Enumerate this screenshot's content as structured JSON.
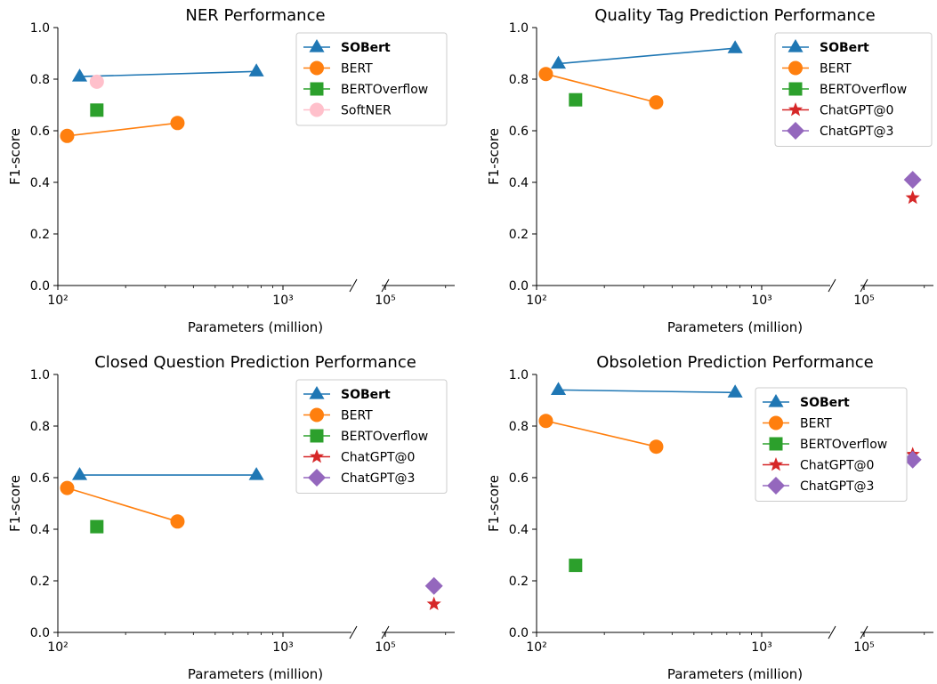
{
  "figure": {
    "panels": [
      {
        "title": "NER Performance",
        "xlabel": "Parameters (million)",
        "ylabel": "F1-score"
      },
      {
        "title": "Quality Tag Prediction Performance",
        "xlabel": "Parameters (million)",
        "ylabel": "F1-score"
      },
      {
        "title": "Closed Question Prediction Performance",
        "xlabel": "Parameters (million)",
        "ylabel": "F1-score"
      },
      {
        "title": "Obsoletion Prediction Performance",
        "xlabel": "Parameters (million)",
        "ylabel": "F1-score"
      }
    ]
  },
  "chart_data": [
    {
      "type": "line",
      "title": "NER Performance",
      "xlabel": "Parameters (million)",
      "ylabel": "F1-score",
      "xscale": "log (broken axis)",
      "ylim": [
        0,
        1
      ],
      "yticks": [
        "0.0",
        "0.2",
        "0.4",
        "0.6",
        "0.8",
        "1.0"
      ],
      "xticks": [
        "10²",
        "10³",
        "10⁵"
      ],
      "legend_position": "top-right",
      "series": [
        {
          "name": "SOBert",
          "bold": true,
          "color": "#1f77b4",
          "marker": "triangle",
          "connected": true,
          "points": [
            {
              "x": 125,
              "y": 0.81
            },
            {
              "x": 762,
              "y": 0.83
            }
          ]
        },
        {
          "name": "BERT",
          "color": "#ff7f0e",
          "marker": "circle",
          "connected": true,
          "points": [
            {
              "x": 110,
              "y": 0.58
            },
            {
              "x": 340,
              "y": 0.63
            }
          ]
        },
        {
          "name": "BERTOverflow",
          "color": "#2ca02c",
          "marker": "square",
          "connected": false,
          "points": [
            {
              "x": 149,
              "y": 0.68
            }
          ]
        },
        {
          "name": "SoftNER",
          "color": "#ffc0cb",
          "marker": "circle",
          "connected": false,
          "points": [
            {
              "x": 149,
              "y": 0.79
            }
          ]
        }
      ]
    },
    {
      "type": "line",
      "title": "Quality Tag Prediction Performance",
      "xlabel": "Parameters (million)",
      "ylabel": "F1-score",
      "xscale": "log (broken axis)",
      "ylim": [
        0,
        1
      ],
      "yticks": [
        "0.0",
        "0.2",
        "0.4",
        "0.6",
        "0.8",
        "1.0"
      ],
      "xticks": [
        "10²",
        "10³",
        "10⁵"
      ],
      "legend_position": "top-right",
      "series": [
        {
          "name": "SOBert",
          "bold": true,
          "color": "#1f77b4",
          "marker": "triangle",
          "connected": true,
          "points": [
            {
              "x": 125,
              "y": 0.86
            },
            {
              "x": 762,
              "y": 0.92
            }
          ]
        },
        {
          "name": "BERT",
          "color": "#ff7f0e",
          "marker": "circle",
          "connected": true,
          "points": [
            {
              "x": 110,
              "y": 0.82
            },
            {
              "x": 340,
              "y": 0.71
            }
          ]
        },
        {
          "name": "BERTOverflow",
          "color": "#2ca02c",
          "marker": "square",
          "connected": false,
          "points": [
            {
              "x": 149,
              "y": 0.72
            }
          ]
        },
        {
          "name": "ChatGPT@0",
          "color": "#d62728",
          "marker": "star",
          "connected": false,
          "points": [
            {
              "x": 175000,
              "y": 0.34
            }
          ]
        },
        {
          "name": "ChatGPT@3",
          "color": "#9467bd",
          "marker": "diamond",
          "connected": false,
          "points": [
            {
              "x": 175000,
              "y": 0.41
            }
          ]
        }
      ]
    },
    {
      "type": "line",
      "title": "Closed Question Prediction Performance",
      "xlabel": "Parameters (million)",
      "ylabel": "F1-score",
      "xscale": "log (broken axis)",
      "ylim": [
        0,
        1
      ],
      "yticks": [
        "0.0",
        "0.2",
        "0.4",
        "0.6",
        "0.8",
        "1.0"
      ],
      "xticks": [
        "10²",
        "10³",
        "10⁵"
      ],
      "legend_position": "top-right",
      "series": [
        {
          "name": "SOBert",
          "bold": true,
          "color": "#1f77b4",
          "marker": "triangle",
          "connected": true,
          "points": [
            {
              "x": 125,
              "y": 0.61
            },
            {
              "x": 762,
              "y": 0.61
            }
          ]
        },
        {
          "name": "BERT",
          "color": "#ff7f0e",
          "marker": "circle",
          "connected": true,
          "points": [
            {
              "x": 110,
              "y": 0.56
            },
            {
              "x": 340,
              "y": 0.43
            }
          ]
        },
        {
          "name": "BERTOverflow",
          "color": "#2ca02c",
          "marker": "square",
          "connected": false,
          "points": [
            {
              "x": 149,
              "y": 0.41
            }
          ]
        },
        {
          "name": "ChatGPT@0",
          "color": "#d62728",
          "marker": "star",
          "connected": false,
          "points": [
            {
              "x": 175000,
              "y": 0.11
            }
          ]
        },
        {
          "name": "ChatGPT@3",
          "color": "#9467bd",
          "marker": "diamond",
          "connected": false,
          "points": [
            {
              "x": 175000,
              "y": 0.18
            }
          ]
        }
      ]
    },
    {
      "type": "line",
      "title": "Obsoletion Prediction Performance",
      "xlabel": "Parameters (million)",
      "ylabel": "F1-score",
      "xscale": "log (broken axis)",
      "ylim": [
        0,
        1
      ],
      "yticks": [
        "0.0",
        "0.2",
        "0.4",
        "0.6",
        "0.8",
        "1.0"
      ],
      "xticks": [
        "10²",
        "10³",
        "10⁵"
      ],
      "legend_position": "top-right",
      "series": [
        {
          "name": "SOBert",
          "bold": true,
          "color": "#1f77b4",
          "marker": "triangle",
          "connected": true,
          "points": [
            {
              "x": 125,
              "y": 0.94
            },
            {
              "x": 762,
              "y": 0.93
            }
          ]
        },
        {
          "name": "BERT",
          "color": "#ff7f0e",
          "marker": "circle",
          "connected": true,
          "points": [
            {
              "x": 110,
              "y": 0.82
            },
            {
              "x": 340,
              "y": 0.72
            }
          ]
        },
        {
          "name": "BERTOverflow",
          "color": "#2ca02c",
          "marker": "square",
          "connected": false,
          "points": [
            {
              "x": 149,
              "y": 0.26
            }
          ]
        },
        {
          "name": "ChatGPT@0",
          "color": "#d62728",
          "marker": "star",
          "connected": false,
          "points": [
            {
              "x": 175000,
              "y": 0.69
            }
          ]
        },
        {
          "name": "ChatGPT@3",
          "color": "#9467bd",
          "marker": "diamond",
          "connected": false,
          "points": [
            {
              "x": 175000,
              "y": 0.67
            }
          ]
        }
      ]
    }
  ]
}
